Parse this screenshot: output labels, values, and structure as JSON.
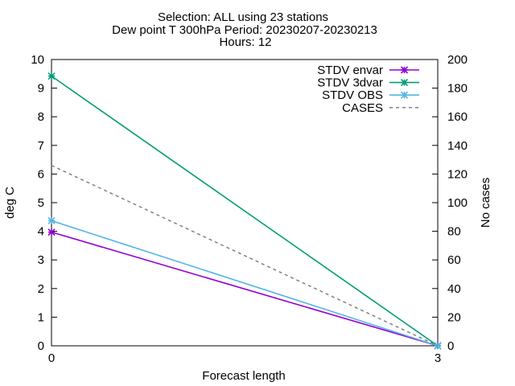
{
  "chart_data": {
    "type": "line",
    "title_lines": [
      "Selection: ALL using    23 stations",
      "Dew point T 300hPa   Period: 20230207-20230213",
      "Hours: 12"
    ],
    "xlabel": "Forecast length",
    "ylabel": "deg C",
    "y2label": "No cases",
    "x": [
      0,
      3
    ],
    "xticks": [
      0,
      3
    ],
    "xlim": [
      0,
      3
    ],
    "ylim": [
      0,
      10
    ],
    "y2lim": [
      0,
      200
    ],
    "yticks": [
      0,
      1,
      2,
      3,
      4,
      5,
      6,
      7,
      8,
      9,
      10
    ],
    "y2ticks": [
      0,
      20,
      40,
      60,
      80,
      100,
      120,
      140,
      160,
      180,
      200
    ],
    "grid": false,
    "legend_position": "top-right",
    "series": [
      {
        "name": "STDV envar",
        "axis": "y",
        "values": [
          3.97,
          0
        ],
        "color": "#9400d3",
        "dash": false,
        "marker": "x-star"
      },
      {
        "name": "STDV 3dvar",
        "axis": "y",
        "values": [
          9.42,
          0
        ],
        "color": "#009e73",
        "dash": false,
        "marker": "x-star"
      },
      {
        "name": "STDV OBS",
        "axis": "y",
        "values": [
          4.37,
          0
        ],
        "color": "#56b4e9",
        "dash": false,
        "marker": "x-star"
      },
      {
        "name": "CASES",
        "axis": "y2",
        "values": [
          126,
          0
        ],
        "color": "#808080",
        "dash": true,
        "marker": "none"
      }
    ]
  }
}
